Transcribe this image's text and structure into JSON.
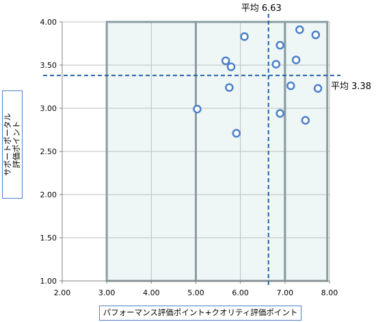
{
  "chart_data": {
    "type": "scatter",
    "xlabel": "パフォーマンス評価ポイント+クオリティ評価ポイント",
    "ylabel_lines": [
      "サポートポータル",
      "評価ポイント"
    ],
    "xlim": [
      2.0,
      8.0
    ],
    "ylim": [
      1.0,
      4.0
    ],
    "x_ticks": [
      "2.00",
      "3.00",
      "4.00",
      "5.00",
      "6.00",
      "7.00",
      "8.00"
    ],
    "y_ticks": [
      "1.00",
      "1.50",
      "2.00",
      "2.50",
      "3.00",
      "3.50",
      "4.00"
    ],
    "grid": true,
    "points": [
      {
        "x": 5.03,
        "y": 2.99
      },
      {
        "x": 5.67,
        "y": 3.55
      },
      {
        "x": 5.75,
        "y": 3.24
      },
      {
        "x": 5.79,
        "y": 3.48
      },
      {
        "x": 5.91,
        "y": 2.71
      },
      {
        "x": 6.09,
        "y": 3.83
      },
      {
        "x": 6.8,
        "y": 3.51
      },
      {
        "x": 6.89,
        "y": 3.73
      },
      {
        "x": 6.89,
        "y": 2.94
      },
      {
        "x": 7.13,
        "y": 3.26
      },
      {
        "x": 7.25,
        "y": 3.56
      },
      {
        "x": 7.33,
        "y": 3.91
      },
      {
        "x": 7.46,
        "y": 2.86
      },
      {
        "x": 7.69,
        "y": 3.85
      },
      {
        "x": 7.74,
        "y": 3.23
      }
    ],
    "avg_x": {
      "value": 6.63,
      "label": "平均 6.63"
    },
    "avg_y": {
      "value": 3.38,
      "label": "平均 3.38"
    },
    "regions": [
      {
        "x0": 3.0,
        "x1": 5.0
      },
      {
        "x0": 5.0,
        "x1": 7.0
      },
      {
        "x0": 7.0,
        "x1": 7.95
      }
    ],
    "colors": {
      "marker": "#4a7fc8",
      "average_line": "#1f5fa8",
      "region_fill": "#eef6f6",
      "region_border": "#8a9ea2",
      "grid": "#bfbfbf"
    }
  }
}
